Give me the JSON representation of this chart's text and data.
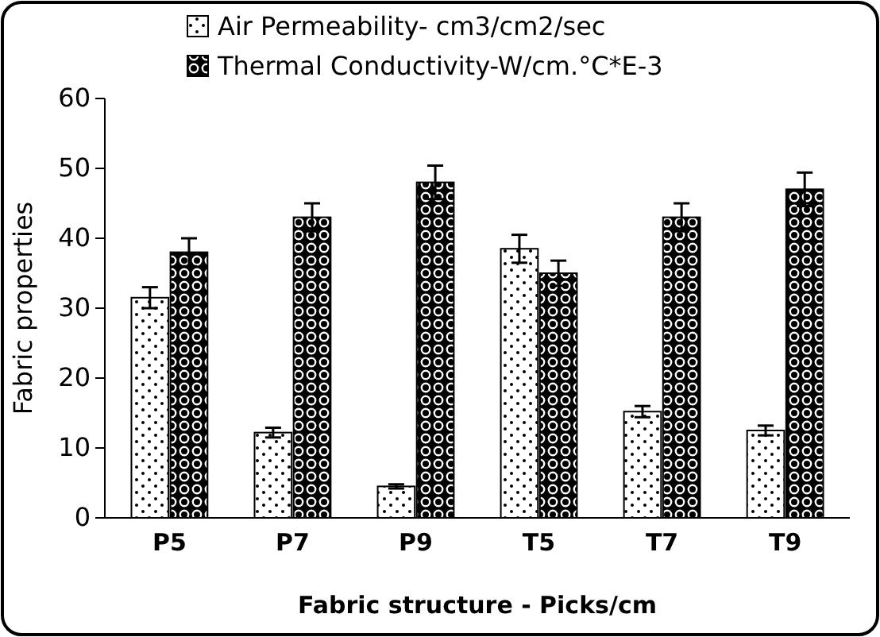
{
  "chart_data": {
    "type": "bar",
    "xlabel": "Fabric structure - Picks/cm",
    "ylabel": "Fabric properties",
    "categories": [
      "P5",
      "P7",
      "P9",
      "T5",
      "T7",
      "T9"
    ],
    "series": [
      {
        "name": "Air Permeability- cm3/cm2/sec",
        "color": "#ffffff",
        "values": [
          31.5,
          12.2,
          4.5,
          38.5,
          15.2,
          12.5
        ],
        "errors": [
          1.5,
          0.7,
          0.3,
          2,
          0.8,
          0.7
        ]
      },
      {
        "name": "Thermal Conductivity-W/cm.°C*E-3",
        "color": "#000000",
        "values": [
          38,
          43,
          48,
          35,
          43,
          47
        ],
        "errors": [
          2,
          2,
          2.4,
          1.8,
          2,
          2.4
        ]
      }
    ],
    "ylim": [
      0,
      60
    ],
    "yticks": [
      0,
      10,
      20,
      30,
      40,
      50,
      60
    ],
    "grid": false,
    "legend": "top"
  }
}
